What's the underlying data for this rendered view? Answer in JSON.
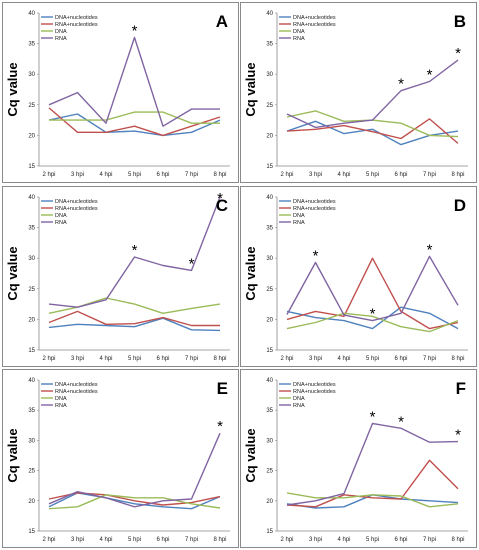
{
  "colors": {
    "dna_nuc": "#4f81bd",
    "rna_nuc": "#c0504d",
    "dna": "#9bbb59",
    "rna": "#8064a2"
  },
  "y_axis_label": "Cq value",
  "chart_data": [
    {
      "type": "line",
      "panel_label": "A",
      "categories": [
        "2 hpi",
        "3 hpi",
        "4 hpi",
        "5 hpi",
        "6 hpi",
        "7 hpi",
        "8 hpi"
      ],
      "ylabel": "Cq value",
      "ylim": [
        15,
        40
      ],
      "yticks": [
        15,
        20,
        25,
        30,
        35,
        40
      ],
      "legend": "top-left",
      "series": [
        {
          "name": "DNA+nucleotides",
          "key": "dna_nuc",
          "values": [
            22.5,
            23.5,
            20.5,
            20.7,
            20.0,
            20.5,
            22.5
          ]
        },
        {
          "name": "RNA+nucleotides",
          "key": "rna_nuc",
          "values": [
            24.5,
            20.5,
            20.5,
            21.5,
            20.0,
            21.5,
            23.0
          ]
        },
        {
          "name": "DNA",
          "key": "dna",
          "values": [
            22.5,
            22.5,
            22.5,
            23.8,
            23.8,
            22.0,
            22.0
          ]
        },
        {
          "name": "RNA",
          "key": "rna",
          "values": [
            25.0,
            27.0,
            22.0,
            36.0,
            21.5,
            24.3,
            24.3
          ]
        }
      ],
      "asterisks": [
        3
      ]
    },
    {
      "type": "line",
      "panel_label": "B",
      "categories": [
        "2 hpi",
        "3 hpi",
        "4 hpi",
        "5 hpi",
        "6 hpi",
        "7 hpi",
        "8 hpi"
      ],
      "ylabel": "Cq value",
      "ylim": [
        15,
        40
      ],
      "yticks": [
        15,
        20,
        25,
        30,
        35,
        40
      ],
      "legend": "top-left",
      "series": [
        {
          "name": "DNA+nucleotides",
          "key": "dna_nuc",
          "values": [
            20.7,
            22.3,
            20.3,
            21.0,
            18.5,
            20.0,
            20.7
          ]
        },
        {
          "name": "RNA+nucleotides",
          "key": "rna_nuc",
          "values": [
            20.7,
            21.0,
            21.6,
            20.6,
            19.5,
            22.7,
            18.7
          ]
        },
        {
          "name": "DNA",
          "key": "dna",
          "values": [
            23.0,
            24.0,
            22.3,
            22.5,
            22.0,
            20.0,
            19.8
          ]
        },
        {
          "name": "RNA",
          "key": "rna",
          "values": [
            23.5,
            21.3,
            22.0,
            22.5,
            27.3,
            28.8,
            32.3
          ]
        }
      ],
      "asterisks": [
        4,
        5,
        6
      ]
    },
    {
      "type": "line",
      "panel_label": "C",
      "categories": [
        "2 hpi",
        "3 hpi",
        "4 hpi",
        "5 hpi",
        "6 hpi",
        "7 hpi",
        "8 hpi"
      ],
      "ylabel": "Cq value",
      "ylim": [
        15,
        40
      ],
      "yticks": [
        15,
        20,
        25,
        30,
        35,
        40
      ],
      "legend": "top-left",
      "series": [
        {
          "name": "DNA+nucleotides",
          "key": "dna_nuc",
          "values": [
            18.7,
            19.2,
            19.0,
            18.8,
            20.2,
            18.3,
            18.2
          ]
        },
        {
          "name": "RNA+nucleotides",
          "key": "rna_nuc",
          "values": [
            19.5,
            21.3,
            19.2,
            19.3,
            20.3,
            19.0,
            19.0
          ]
        },
        {
          "name": "DNA",
          "key": "dna",
          "values": [
            21.0,
            22.0,
            23.5,
            22.5,
            21.0,
            21.8,
            22.5
          ]
        },
        {
          "name": "RNA",
          "key": "rna",
          "values": [
            22.5,
            22.0,
            23.2,
            30.2,
            28.8,
            28.0,
            40.0
          ]
        }
      ],
      "asterisks": [
        3,
        5,
        6
      ]
    },
    {
      "type": "line",
      "panel_label": "D",
      "categories": [
        "2 hpi",
        "3 hpi",
        "4 hpi",
        "5 hpi",
        "6 hpi",
        "7 hpi",
        "8 hpi"
      ],
      "ylabel": "Cq value",
      "ylim": [
        15,
        40
      ],
      "yticks": [
        15,
        20,
        25,
        30,
        35,
        40
      ],
      "legend": "top-left",
      "series": [
        {
          "name": "DNA+nucleotides",
          "key": "dna_nuc",
          "values": [
            21.3,
            20.3,
            19.8,
            18.5,
            22.0,
            21.0,
            18.5
          ]
        },
        {
          "name": "RNA+nucleotides",
          "key": "rna_nuc",
          "values": [
            20.0,
            21.3,
            20.5,
            30.0,
            21.3,
            18.5,
            19.5
          ]
        },
        {
          "name": "DNA",
          "key": "dna",
          "values": [
            18.5,
            19.5,
            21.0,
            20.5,
            18.8,
            18.0,
            19.8
          ]
        },
        {
          "name": "RNA",
          "key": "rna",
          "values": [
            20.8,
            29.3,
            20.7,
            19.8,
            21.0,
            30.3,
            22.3
          ]
        }
      ],
      "asterisks": [
        1,
        3,
        5
      ]
    },
    {
      "type": "line",
      "panel_label": "E",
      "categories": [
        "2 hpi",
        "3 hpi",
        "4 hpi",
        "5 hpi",
        "6 hpi",
        "7 hpi",
        "8 hpi"
      ],
      "ylabel": "Cq value",
      "ylim": [
        15,
        40
      ],
      "yticks": [
        15,
        20,
        25,
        30,
        35,
        40
      ],
      "legend": "top-left",
      "series": [
        {
          "name": "DNA+nucleotides",
          "key": "dna_nuc",
          "values": [
            19.0,
            21.3,
            20.5,
            19.5,
            19.0,
            18.7,
            20.7
          ]
        },
        {
          "name": "RNA+nucleotides",
          "key": "rna_nuc",
          "values": [
            20.3,
            21.3,
            21.0,
            20.0,
            19.3,
            19.7,
            20.7
          ]
        },
        {
          "name": "DNA",
          "key": "dna",
          "values": [
            18.7,
            19.0,
            21.0,
            20.5,
            20.5,
            19.5,
            18.8
          ]
        },
        {
          "name": "RNA",
          "key": "rna",
          "values": [
            19.5,
            21.5,
            20.5,
            19.0,
            20.0,
            20.3,
            31.2
          ]
        }
      ],
      "asterisks": [
        6
      ]
    },
    {
      "type": "line",
      "panel_label": "F",
      "categories": [
        "2 hpi",
        "3 hpi",
        "4 hpi",
        "5 hpi",
        "6 hpi",
        "7 hpi",
        "8 hpi"
      ],
      "ylabel": "Cq value",
      "ylim": [
        15,
        40
      ],
      "yticks": [
        15,
        20,
        25,
        30,
        35,
        40
      ],
      "legend": "top-left",
      "series": [
        {
          "name": "DNA+nucleotides",
          "key": "dna_nuc",
          "values": [
            19.5,
            18.8,
            19.0,
            21.0,
            20.3,
            20.0,
            19.7
          ]
        },
        {
          "name": "RNA+nucleotides",
          "key": "rna_nuc",
          "values": [
            19.3,
            19.0,
            21.0,
            20.5,
            20.3,
            26.7,
            22.0
          ]
        },
        {
          "name": "DNA",
          "key": "dna",
          "values": [
            21.3,
            20.5,
            20.5,
            21.0,
            20.8,
            19.0,
            19.5
          ]
        },
        {
          "name": "RNA",
          "key": "rna",
          "values": [
            19.3,
            20.0,
            21.2,
            32.8,
            32.0,
            29.7,
            29.8
          ]
        }
      ],
      "asterisks": [
        3,
        4,
        6
      ]
    }
  ]
}
